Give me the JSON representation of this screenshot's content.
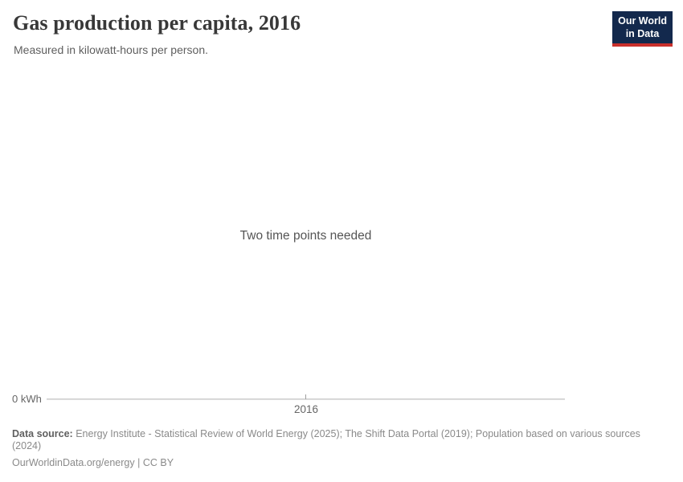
{
  "header": {
    "title": "Gas production per capita, 2016",
    "subtitle": "Measured in kilowatt-hours per person.",
    "logo": {
      "line1": "Our World",
      "line2": "in Data",
      "bg_color": "#13294d",
      "accent_color": "#c9302c",
      "text_color": "#ffffff"
    }
  },
  "chart": {
    "empty_message": "Two time points needed",
    "y_axis_zero_label": "0 kWh",
    "x_tick_label": "2016",
    "axis_color": "#c6c6c6"
  },
  "chart_data": {
    "type": "line",
    "title": "Gas production per capita, 2016",
    "subtitle": "Measured in kilowatt-hours per person.",
    "unit": "kilowatt-hours per person",
    "x_ticks": [
      "2016"
    ],
    "y_ticks": [
      "0 kWh"
    ],
    "series": [],
    "annotations": [
      "Two time points needed"
    ],
    "legend_position": "none",
    "grid": false,
    "note": "Empty chart state: only one year (2016) selected, no data series plotted"
  },
  "footer": {
    "source_label": "Data source:",
    "source_text": "Energy Institute - Statistical Review of World Energy (2025); The Shift Data Portal (2019); Population based on various sources (2024)",
    "url": "OurWorldinData.org/energy",
    "separator": " | ",
    "license": "CC BY"
  }
}
